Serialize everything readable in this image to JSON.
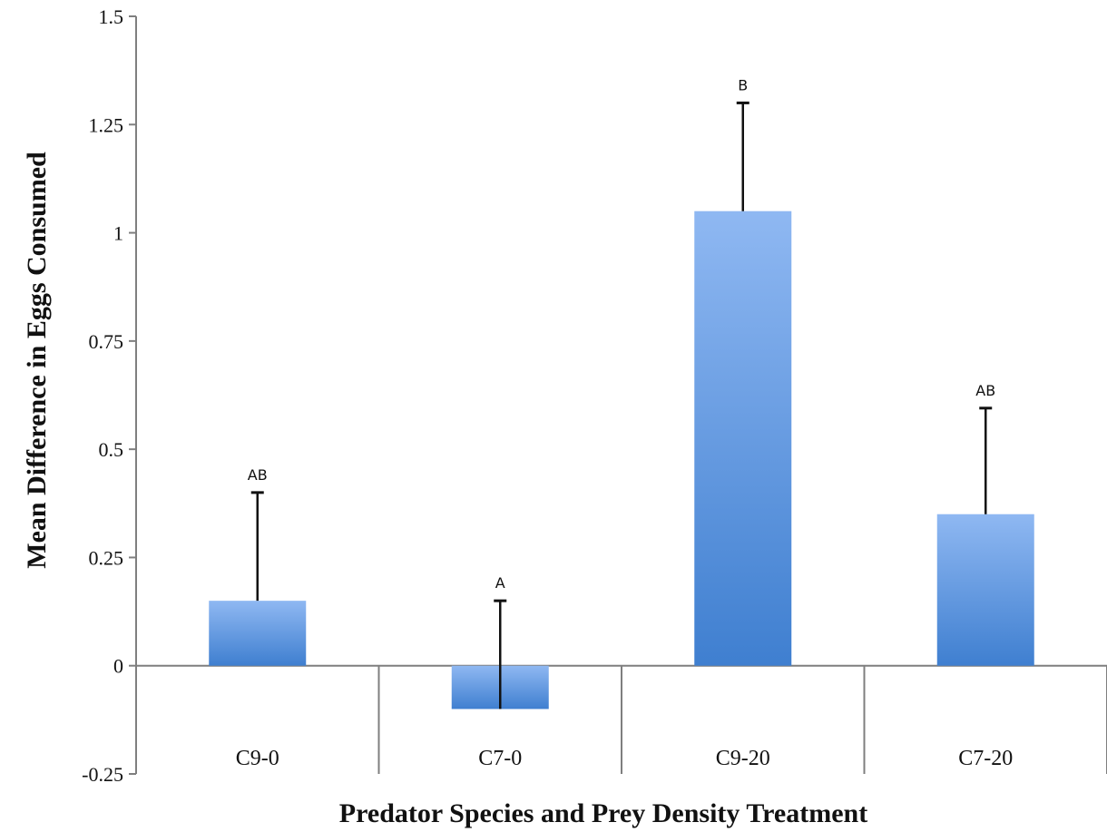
{
  "chart_data": {
    "type": "bar",
    "title": "",
    "xlabel": "Predator Species and Prey Density Treatment",
    "ylabel": "Mean Difference in Eggs Consumed",
    "categories": [
      "C9-0",
      "C7-0",
      "C9-20",
      "C7-20"
    ],
    "values": [
      0.15,
      -0.1,
      1.05,
      0.35
    ],
    "error_plus": [
      0.25,
      0.25,
      0.25,
      0.245
    ],
    "significance_labels": [
      "AB",
      "A",
      "B",
      "AB"
    ],
    "ylim": [
      -0.25,
      1.5
    ],
    "yticks": [
      -0.25,
      0,
      0.25,
      0.5,
      0.75,
      1,
      1.25,
      1.5
    ],
    "ytick_labels": [
      "-0.25",
      "0",
      "0.25",
      "0.5",
      "0.75",
      "1",
      "1.25",
      "1.5"
    ],
    "grid": false,
    "legend": "none",
    "colors": {
      "bar_top": "#8fb8f2",
      "bar_bottom": "#3f7fd0",
      "axis": "#7f7f7f",
      "error": "#111111"
    }
  }
}
